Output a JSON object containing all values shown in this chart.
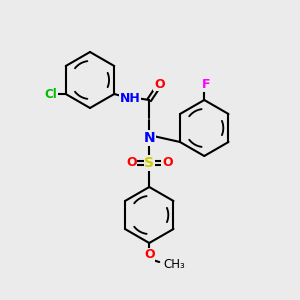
{
  "background_color": "#ebebeb",
  "atom_colors": {
    "N": "#0000ff",
    "O": "#ff0000",
    "S": "#cccc00",
    "Cl": "#00bb00",
    "F": "#ff00ff"
  },
  "bond_color": "#000000",
  "ring_r": 28
}
